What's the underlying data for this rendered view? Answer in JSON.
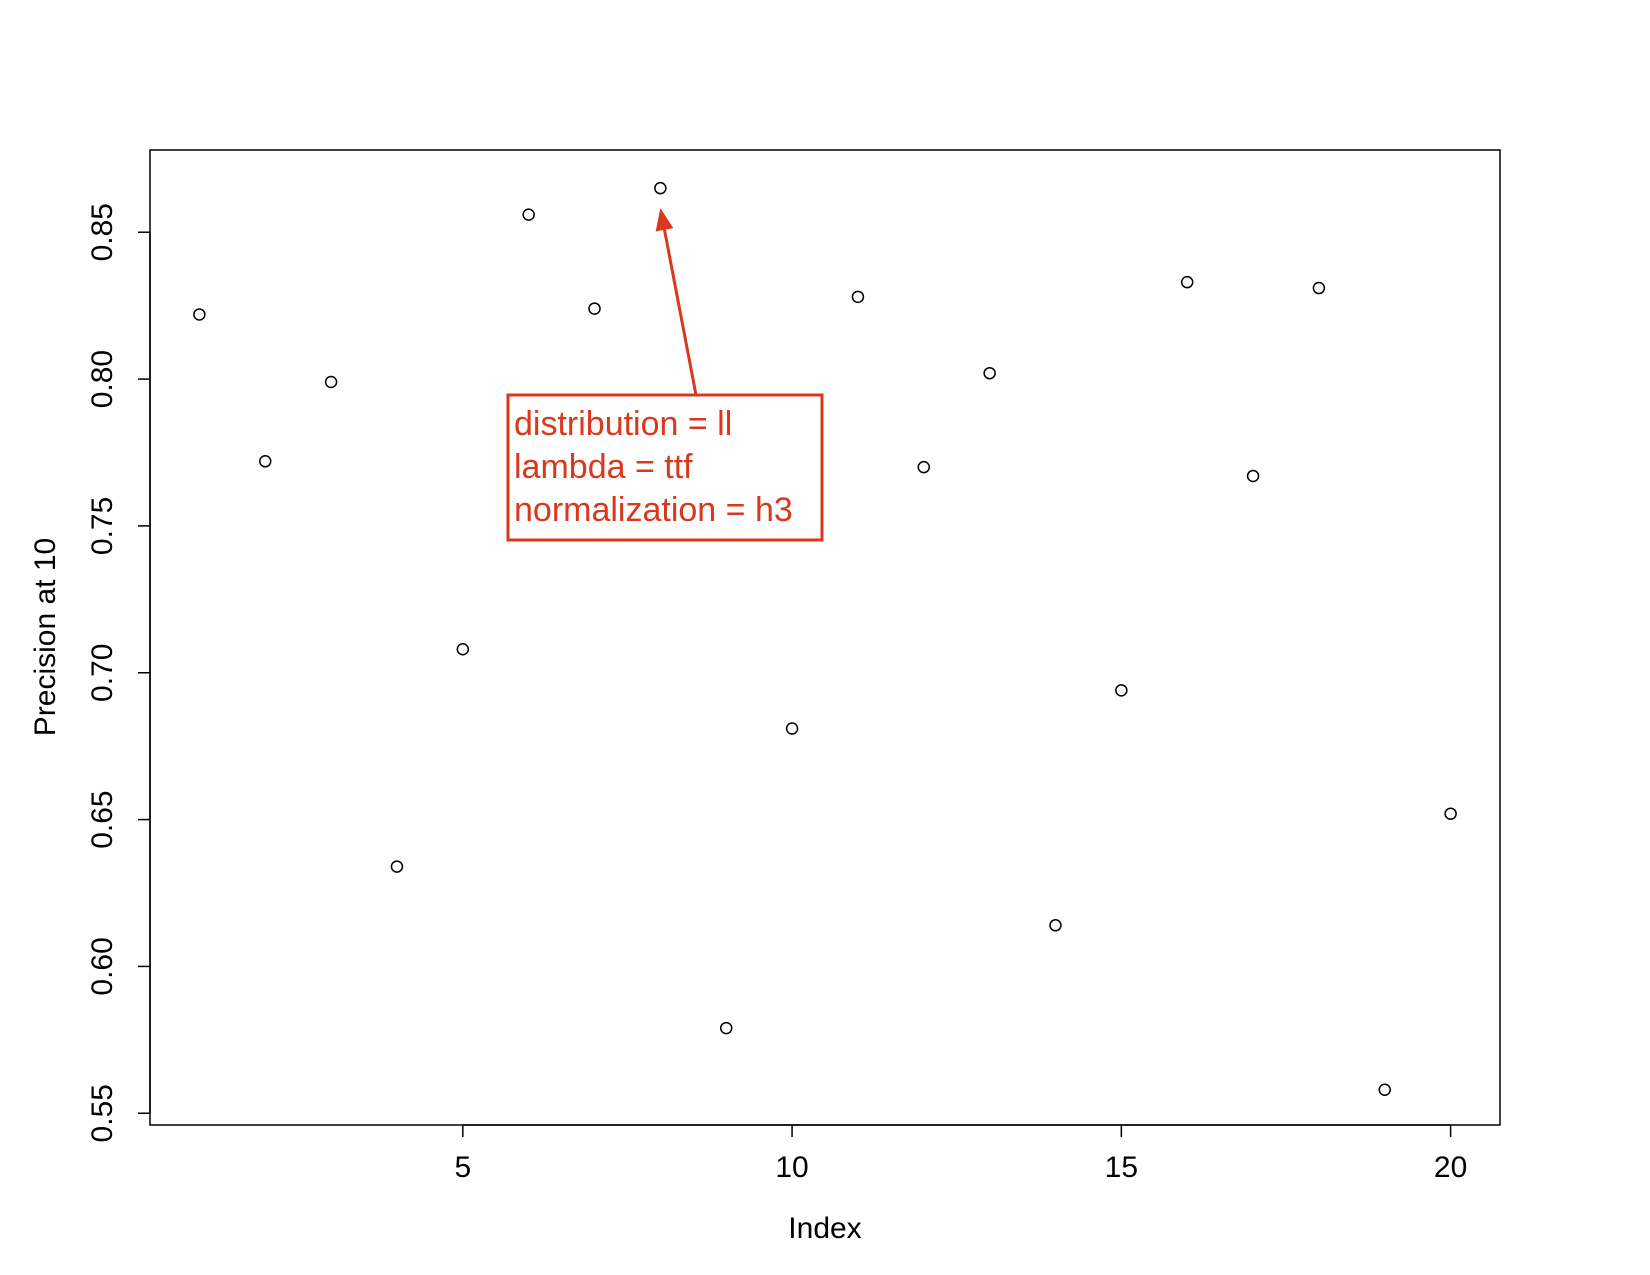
{
  "chart_data": {
    "type": "scatter",
    "xlabel": "Index",
    "ylabel": "Precision at 10",
    "xlim": [
      0.25,
      20.75
    ],
    "ylim": [
      0.546,
      0.878
    ],
    "x_ticks": [
      5,
      10,
      15,
      20
    ],
    "y_ticks": [
      0.55,
      0.6,
      0.65,
      0.7,
      0.75,
      0.8,
      0.85
    ],
    "x_tick_labels": [
      "5",
      "10",
      "15",
      "20"
    ],
    "y_tick_labels": [
      "0.55",
      "0.60",
      "0.65",
      "0.70",
      "0.75",
      "0.80",
      "0.85"
    ],
    "grid": false,
    "marker": "open-circle",
    "x": [
      1,
      2,
      3,
      4,
      5,
      6,
      7,
      8,
      9,
      10,
      11,
      12,
      13,
      14,
      15,
      16,
      17,
      18,
      19,
      20
    ],
    "y": [
      0.822,
      0.772,
      0.799,
      0.634,
      0.708,
      0.856,
      0.824,
      0.865,
      0.579,
      0.681,
      0.828,
      0.77,
      0.802,
      0.614,
      0.694,
      0.833,
      0.767,
      0.831,
      0.558,
      0.652
    ],
    "annotation": {
      "point_index": 8,
      "lines": [
        "distribution = ll",
        "lambda = ttf",
        "normalization = h3"
      ],
      "color": "#d9381e"
    }
  }
}
